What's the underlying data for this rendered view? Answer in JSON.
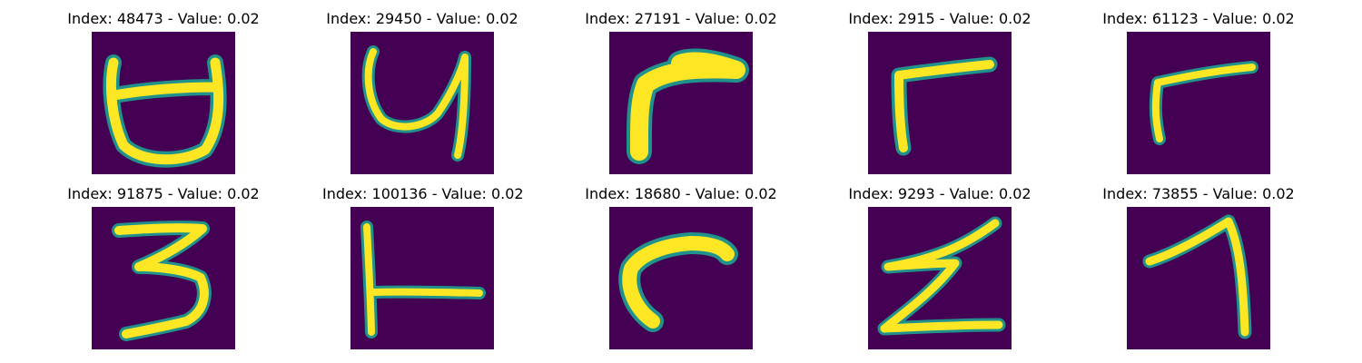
{
  "panels": [
    {
      "title": "Index: 48473 - Value: 0.02"
    },
    {
      "title": "Index: 29450 - Value: 0.02"
    },
    {
      "title": "Index: 27191 - Value: 0.02"
    },
    {
      "title": "Index: 2915 - Value: 0.02"
    },
    {
      "title": "Index: 61123 - Value: 0.02"
    },
    {
      "title": "Index: 91875 - Value: 0.02"
    },
    {
      "title": "Index: 100136 - Value: 0.02"
    },
    {
      "title": "Index: 18680 - Value: 0.02"
    },
    {
      "title": "Index: 9293 - Value: 0.02"
    },
    {
      "title": "Index: 73855 - Value: 0.02"
    }
  ],
  "colors": {
    "background": "#440154",
    "edge": "#21918c",
    "stroke": "#fde725",
    "title_text": "#000000"
  }
}
